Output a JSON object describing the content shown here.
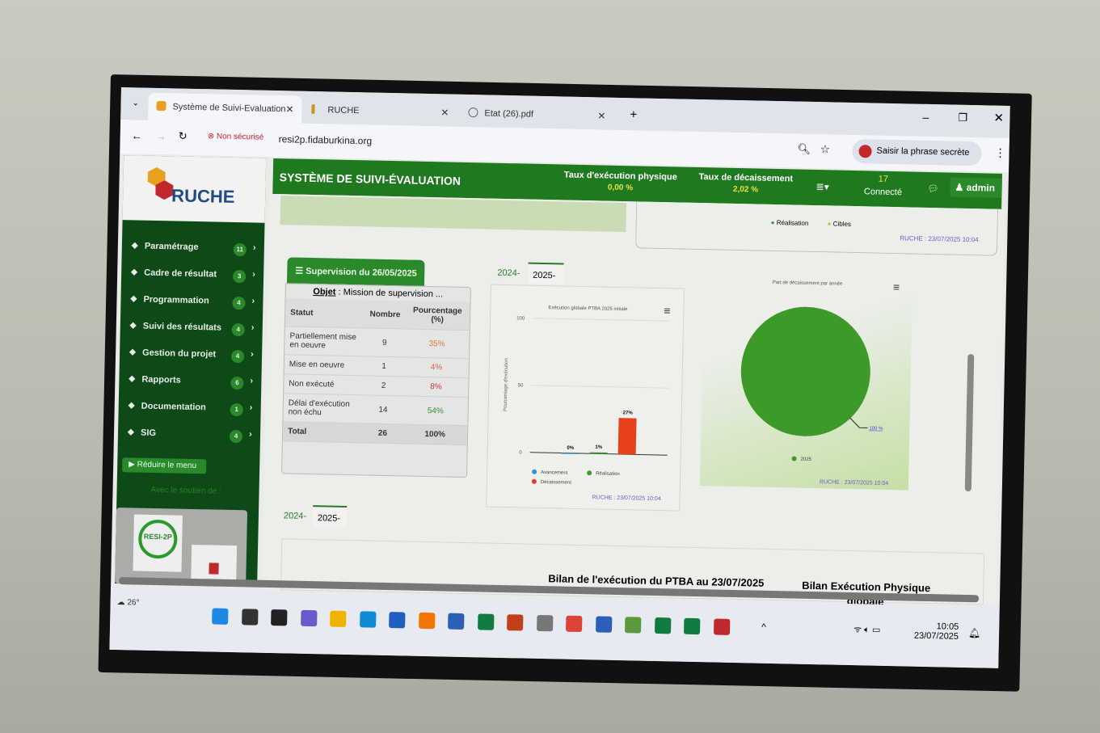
{
  "browser": {
    "tabs": [
      {
        "label": "Système de Suivi-Evaluation",
        "active": true
      },
      {
        "label": "RUCHE",
        "active": false
      },
      {
        "label": "Etat (26).pdf",
        "active": false
      }
    ],
    "new_tab": "+",
    "security": "Non sécurisé",
    "url": "resi2p.fidaburkina.org",
    "password_prompt": "Saisir la phrase secrète"
  },
  "app": {
    "logo_text": "RUCHE",
    "title": "SYSTÈME DE SUIVI-ÉVALUATION",
    "kpis": [
      {
        "label": "Taux d'exécution physique",
        "value": "0,00 %"
      },
      {
        "label": "Taux de décaissement",
        "value": "2,02 %"
      }
    ],
    "connected_count": "17",
    "connected_label": "Connecté",
    "user": "admin",
    "accent": "#1f7a1f",
    "sidebar_bg": "#0e4a18"
  },
  "sidebar": {
    "items": [
      {
        "label": "Paramétrage",
        "count": "11",
        "icon": "gear-icon"
      },
      {
        "label": "Cadre de résultat",
        "count": "3",
        "icon": "comment-icon"
      },
      {
        "label": "Programmation",
        "count": "4",
        "icon": "calculator-icon"
      },
      {
        "label": "Suivi des résultats",
        "count": "4",
        "icon": "cubes-icon"
      },
      {
        "label": "Gestion du projet",
        "count": "4",
        "icon": "exchange-icon"
      },
      {
        "label": "Rapports",
        "count": "6",
        "icon": "list-icon"
      },
      {
        "label": "Documentation",
        "count": "1",
        "icon": "newspaper-icon"
      },
      {
        "label": "SIG",
        "count": "4",
        "icon": "map-marker-icon"
      }
    ],
    "collapse": "Réduire le menu",
    "support": "Avec le soutien de :",
    "partner_logo": "RESI-2P"
  },
  "top_panel": {
    "legend": [
      "Réalisation",
      "Cibles"
    ],
    "stamp": "RUCHE : 23/07/2025 10:04"
  },
  "supervision": {
    "title": "Supervision du 26/05/2025",
    "objet_label": "Objet",
    "objet": ": Mission de supervision ...",
    "headers": [
      "Statut",
      "Nombre",
      "Pourcentage (%)"
    ],
    "rows": [
      {
        "statut": "Partiellement mise en oeuvre",
        "nombre": "9",
        "pct": "35%",
        "color": "#e0763a"
      },
      {
        "statut": "Mise en oeuvre",
        "nombre": "1",
        "pct": "4%",
        "color": "#e0604a"
      },
      {
        "statut": "Non exécuté",
        "nombre": "2",
        "pct": "8%",
        "color": "#d43030"
      },
      {
        "statut": "Délai d'exécution non échu",
        "nombre": "14",
        "pct": "54%",
        "color": "#3a8a3a"
      }
    ],
    "total": {
      "label": "Total",
      "nombre": "26",
      "pct": "100%"
    }
  },
  "year_tabs": [
    "2024-",
    "2025-"
  ],
  "chart_data": [
    {
      "type": "bar",
      "title": "Exécution globale PTBA 2025 initiale",
      "ylabel": "Pourcentage d'exécution",
      "xlabel": "",
      "ylim": [
        0,
        100
      ],
      "yticks": [
        0,
        50,
        100
      ],
      "grid": true,
      "legend": "bottom",
      "series": [
        {
          "name": "Avancement",
          "value": 0,
          "label": "0%",
          "color": "#3a8fc9"
        },
        {
          "name": "Réalisation",
          "value": 1,
          "label": "1%",
          "color": "#3a9a2a"
        },
        {
          "name": "Décaissement",
          "value": 27,
          "label": "27%",
          "color": "#e8401c"
        }
      ],
      "stamp": "RUCHE : 23/07/2025 10:04"
    },
    {
      "type": "pie",
      "title": "Part de décaissement par année",
      "legend": "bottom",
      "slices": [
        {
          "name": "2025",
          "value": 100,
          "label": "100 %",
          "color": "#3c9a28"
        }
      ],
      "stamp": "RUCHE : 23/07/2025 10:04"
    }
  ],
  "bottom": {
    "bilan_ptba": "Bilan de l'exécution du PTBA au 23/07/2025",
    "bilan_physique": "Bilan Exécution Physique",
    "bilan_physique_2": "globale"
  },
  "taskbar": {
    "weather": "26°",
    "time": "10:05",
    "date": "23/07/2025"
  }
}
